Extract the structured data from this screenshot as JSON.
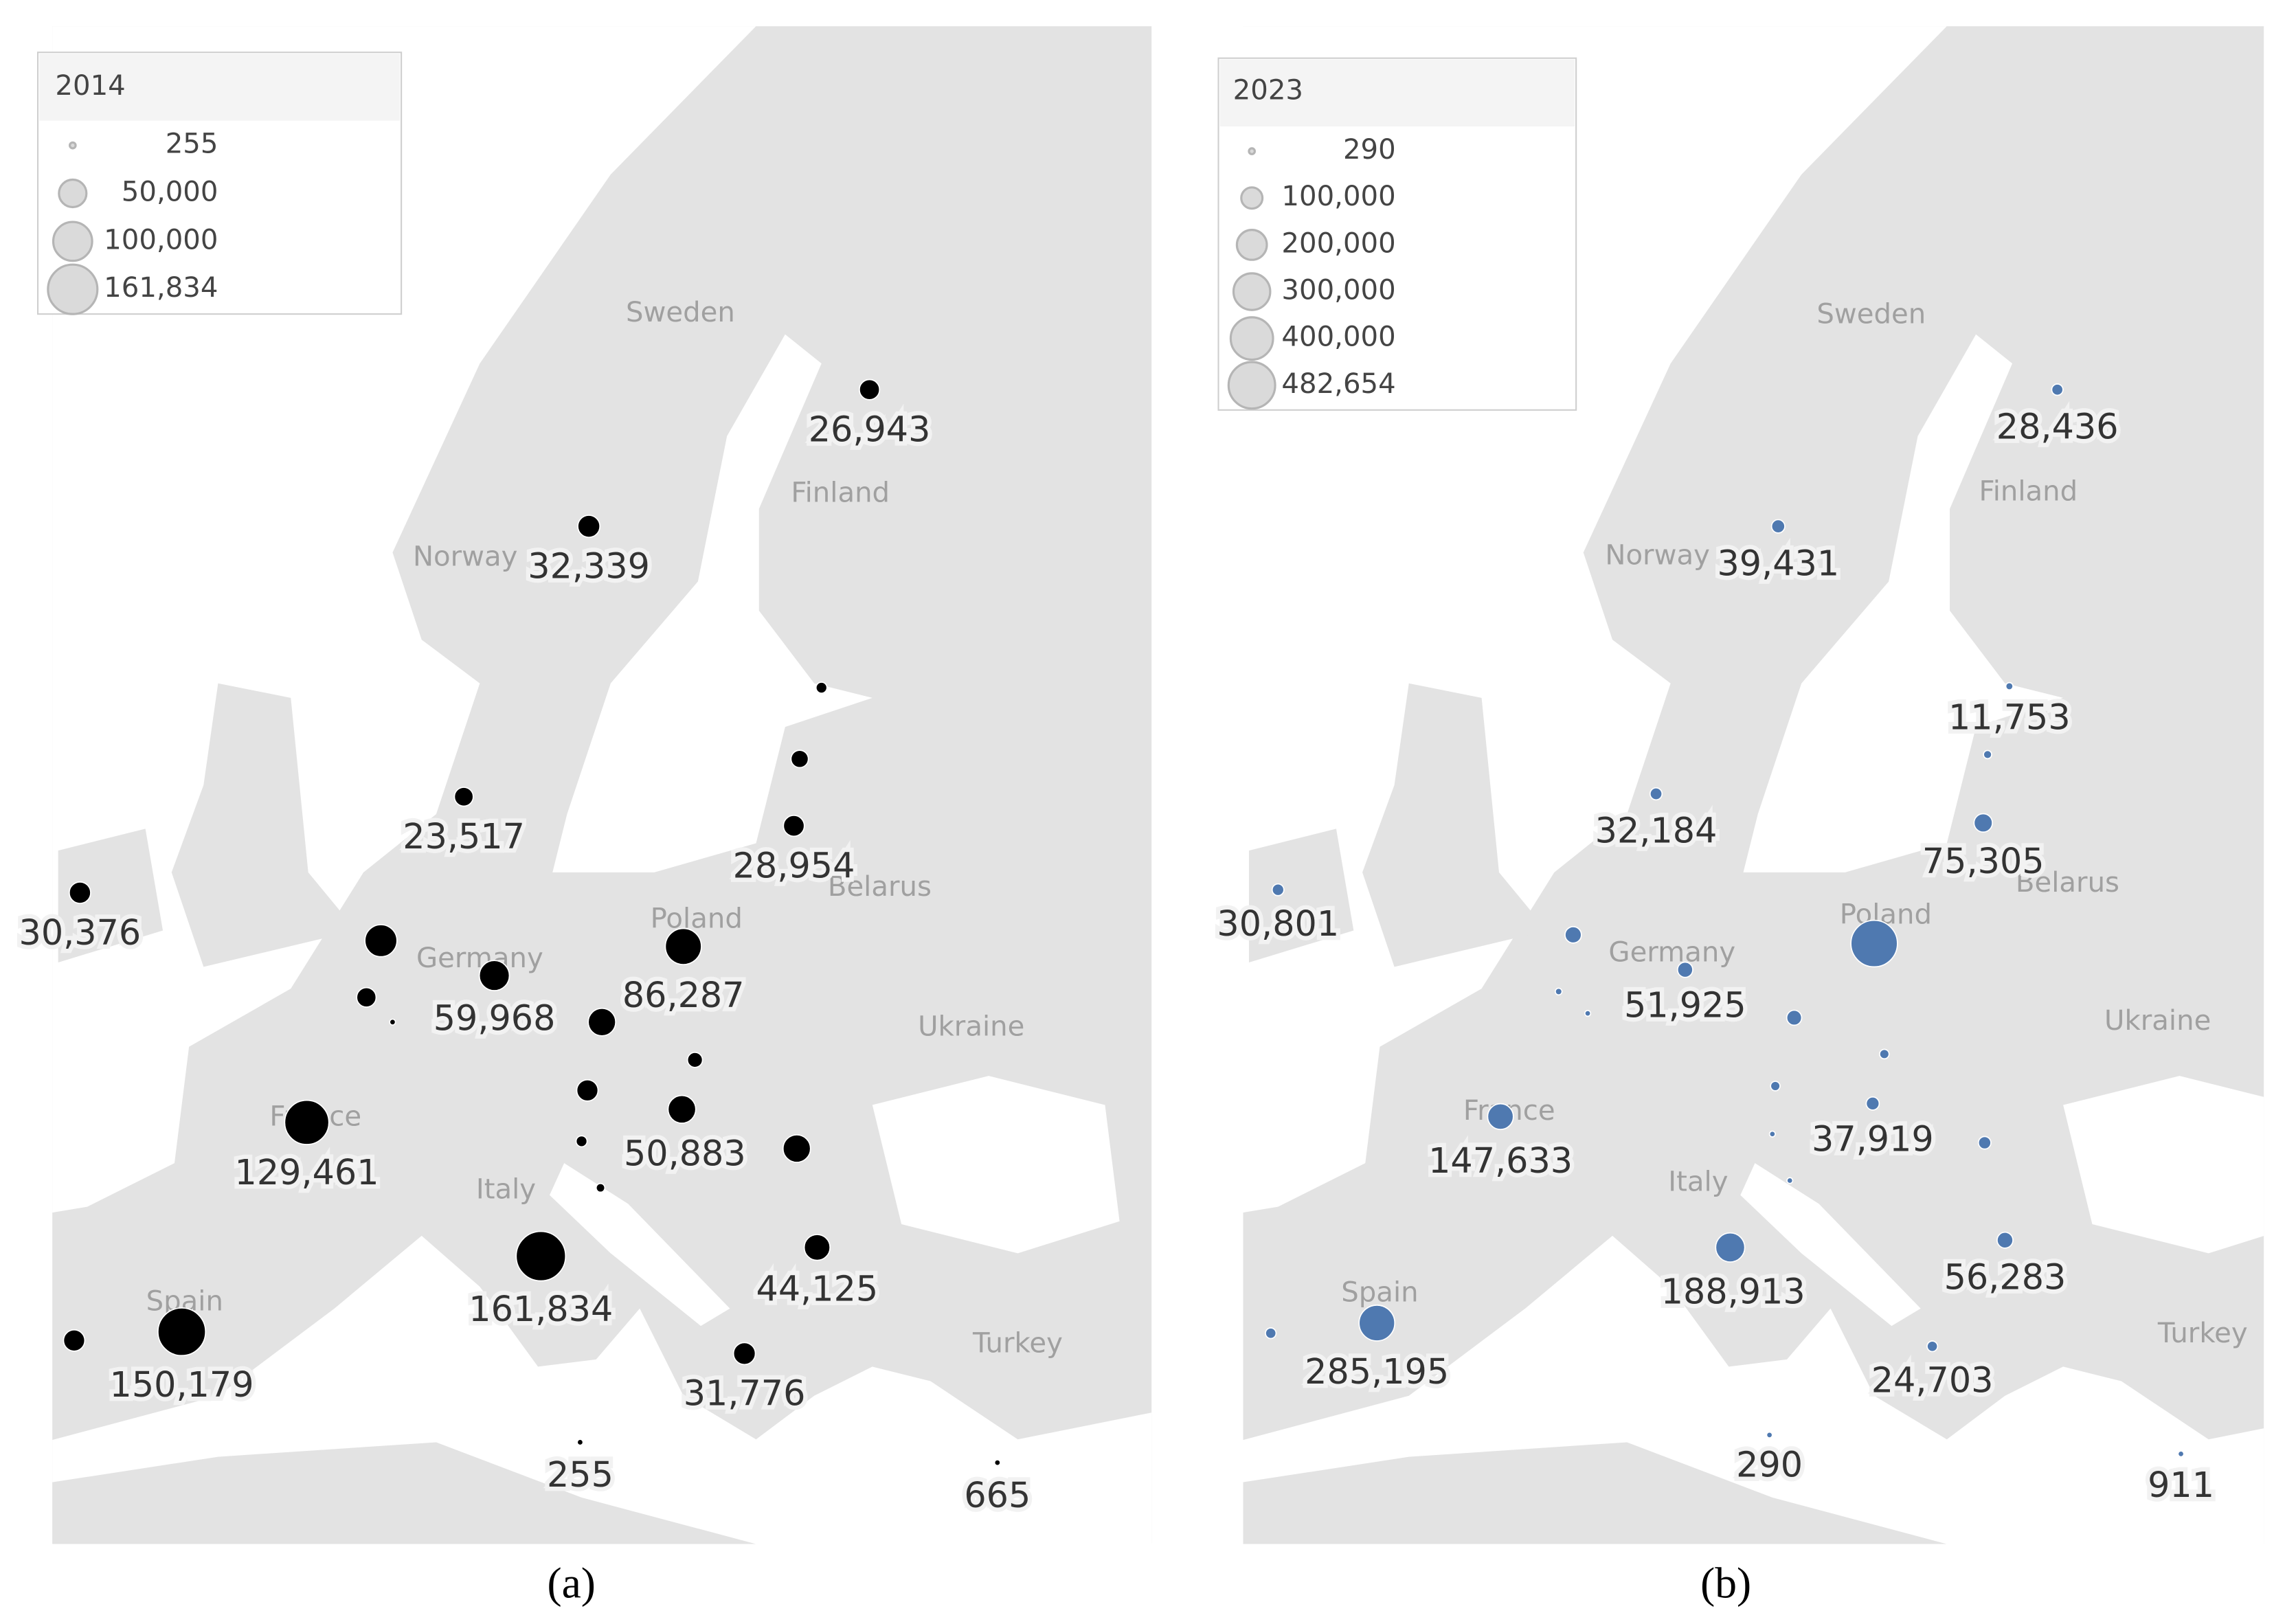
{
  "maps": [
    {
      "panel_label": "(a)",
      "color": "#000000",
      "legend": {
        "title": "2014",
        "entries": [
          {
            "value": 255,
            "label": "255"
          },
          {
            "value": 50000,
            "label": "50,000"
          },
          {
            "value": 100000,
            "label": "100,000"
          },
          {
            "value": 161834,
            "label": "161,834"
          }
        ]
      },
      "countries": [
        "Sweden",
        "Finland",
        "Norway",
        "Poland",
        "Germany",
        "France",
        "Italy",
        "Spain",
        "Ukraine",
        "Belarus",
        "Turkey"
      ],
      "bubbles": [
        {
          "value": 26943,
          "label": "26,943"
        },
        {
          "value": 32339,
          "label": "32,339"
        },
        {
          "value": 8000
        },
        {
          "value": 20000
        },
        {
          "value": 28954,
          "label": "28,954"
        },
        {
          "value": 23517,
          "label": "23,517"
        },
        {
          "value": 30376,
          "label": "30,376"
        },
        {
          "value": 68000
        },
        {
          "value": 25000
        },
        {
          "value": 1000
        },
        {
          "value": 59968,
          "label": "59,968"
        },
        {
          "value": 86287,
          "label": "86,287"
        },
        {
          "value": 50000
        },
        {
          "value": 15000
        },
        {
          "value": 30000
        },
        {
          "value": 50883,
          "label": "50,883"
        },
        {
          "value": 8000
        },
        {
          "value": 5000
        },
        {
          "value": 50000
        },
        {
          "value": 44125,
          "label": "44,125"
        },
        {
          "value": 129461,
          "label": "129,461"
        },
        {
          "value": 161834,
          "label": "161,834"
        },
        {
          "value": 150179,
          "label": "150,179"
        },
        {
          "value": 30000
        },
        {
          "value": 31776,
          "label": "31,776"
        },
        {
          "value": 255,
          "label": "255"
        },
        {
          "value": 665,
          "label": "665"
        }
      ]
    },
    {
      "panel_label": "(b)",
      "color": "#4f79b0",
      "legend": {
        "title": "2023",
        "entries": [
          {
            "value": 290,
            "label": "290"
          },
          {
            "value": 100000,
            "label": "100,000"
          },
          {
            "value": 200000,
            "label": "200,000"
          },
          {
            "value": 300000,
            "label": "300,000"
          },
          {
            "value": 400000,
            "label": "400,000"
          },
          {
            "value": 482654,
            "label": "482,654"
          }
        ]
      },
      "countries": [
        "Sweden",
        "Finland",
        "Norway",
        "Poland",
        "Germany",
        "France",
        "Italy",
        "Spain",
        "Ukraine",
        "Belarus",
        "Turkey"
      ],
      "bubbles": [
        {
          "value": 28436,
          "label": "28,436"
        },
        {
          "value": 39431,
          "label": "39,431"
        },
        {
          "value": 11753,
          "label": "11,753"
        },
        {
          "value": 15000
        },
        {
          "value": 75305,
          "label": "75,305"
        },
        {
          "value": 32184,
          "label": "32,184"
        },
        {
          "value": 30801,
          "label": "30,801"
        },
        {
          "value": 60000
        },
        {
          "value": 10000
        },
        {
          "value": 1000
        },
        {
          "value": 51925,
          "label": "51,925"
        },
        {
          "value": 482654
        },
        {
          "value": 50000
        },
        {
          "value": 20000
        },
        {
          "value": 20000
        },
        {
          "value": 37919,
          "label": "37,919"
        },
        {
          "value": 2000
        },
        {
          "value": 5000
        },
        {
          "value": 35000
        },
        {
          "value": 56283,
          "label": "56,283"
        },
        {
          "value": 147633,
          "label": "147,633"
        },
        {
          "value": 188913,
          "label": "188,913"
        },
        {
          "value": 285195,
          "label": "285,195"
        },
        {
          "value": 25000
        },
        {
          "value": 24703,
          "label": "24,703"
        },
        {
          "value": 290,
          "label": "290"
        },
        {
          "value": 911,
          "label": "911"
        }
      ]
    }
  ]
}
